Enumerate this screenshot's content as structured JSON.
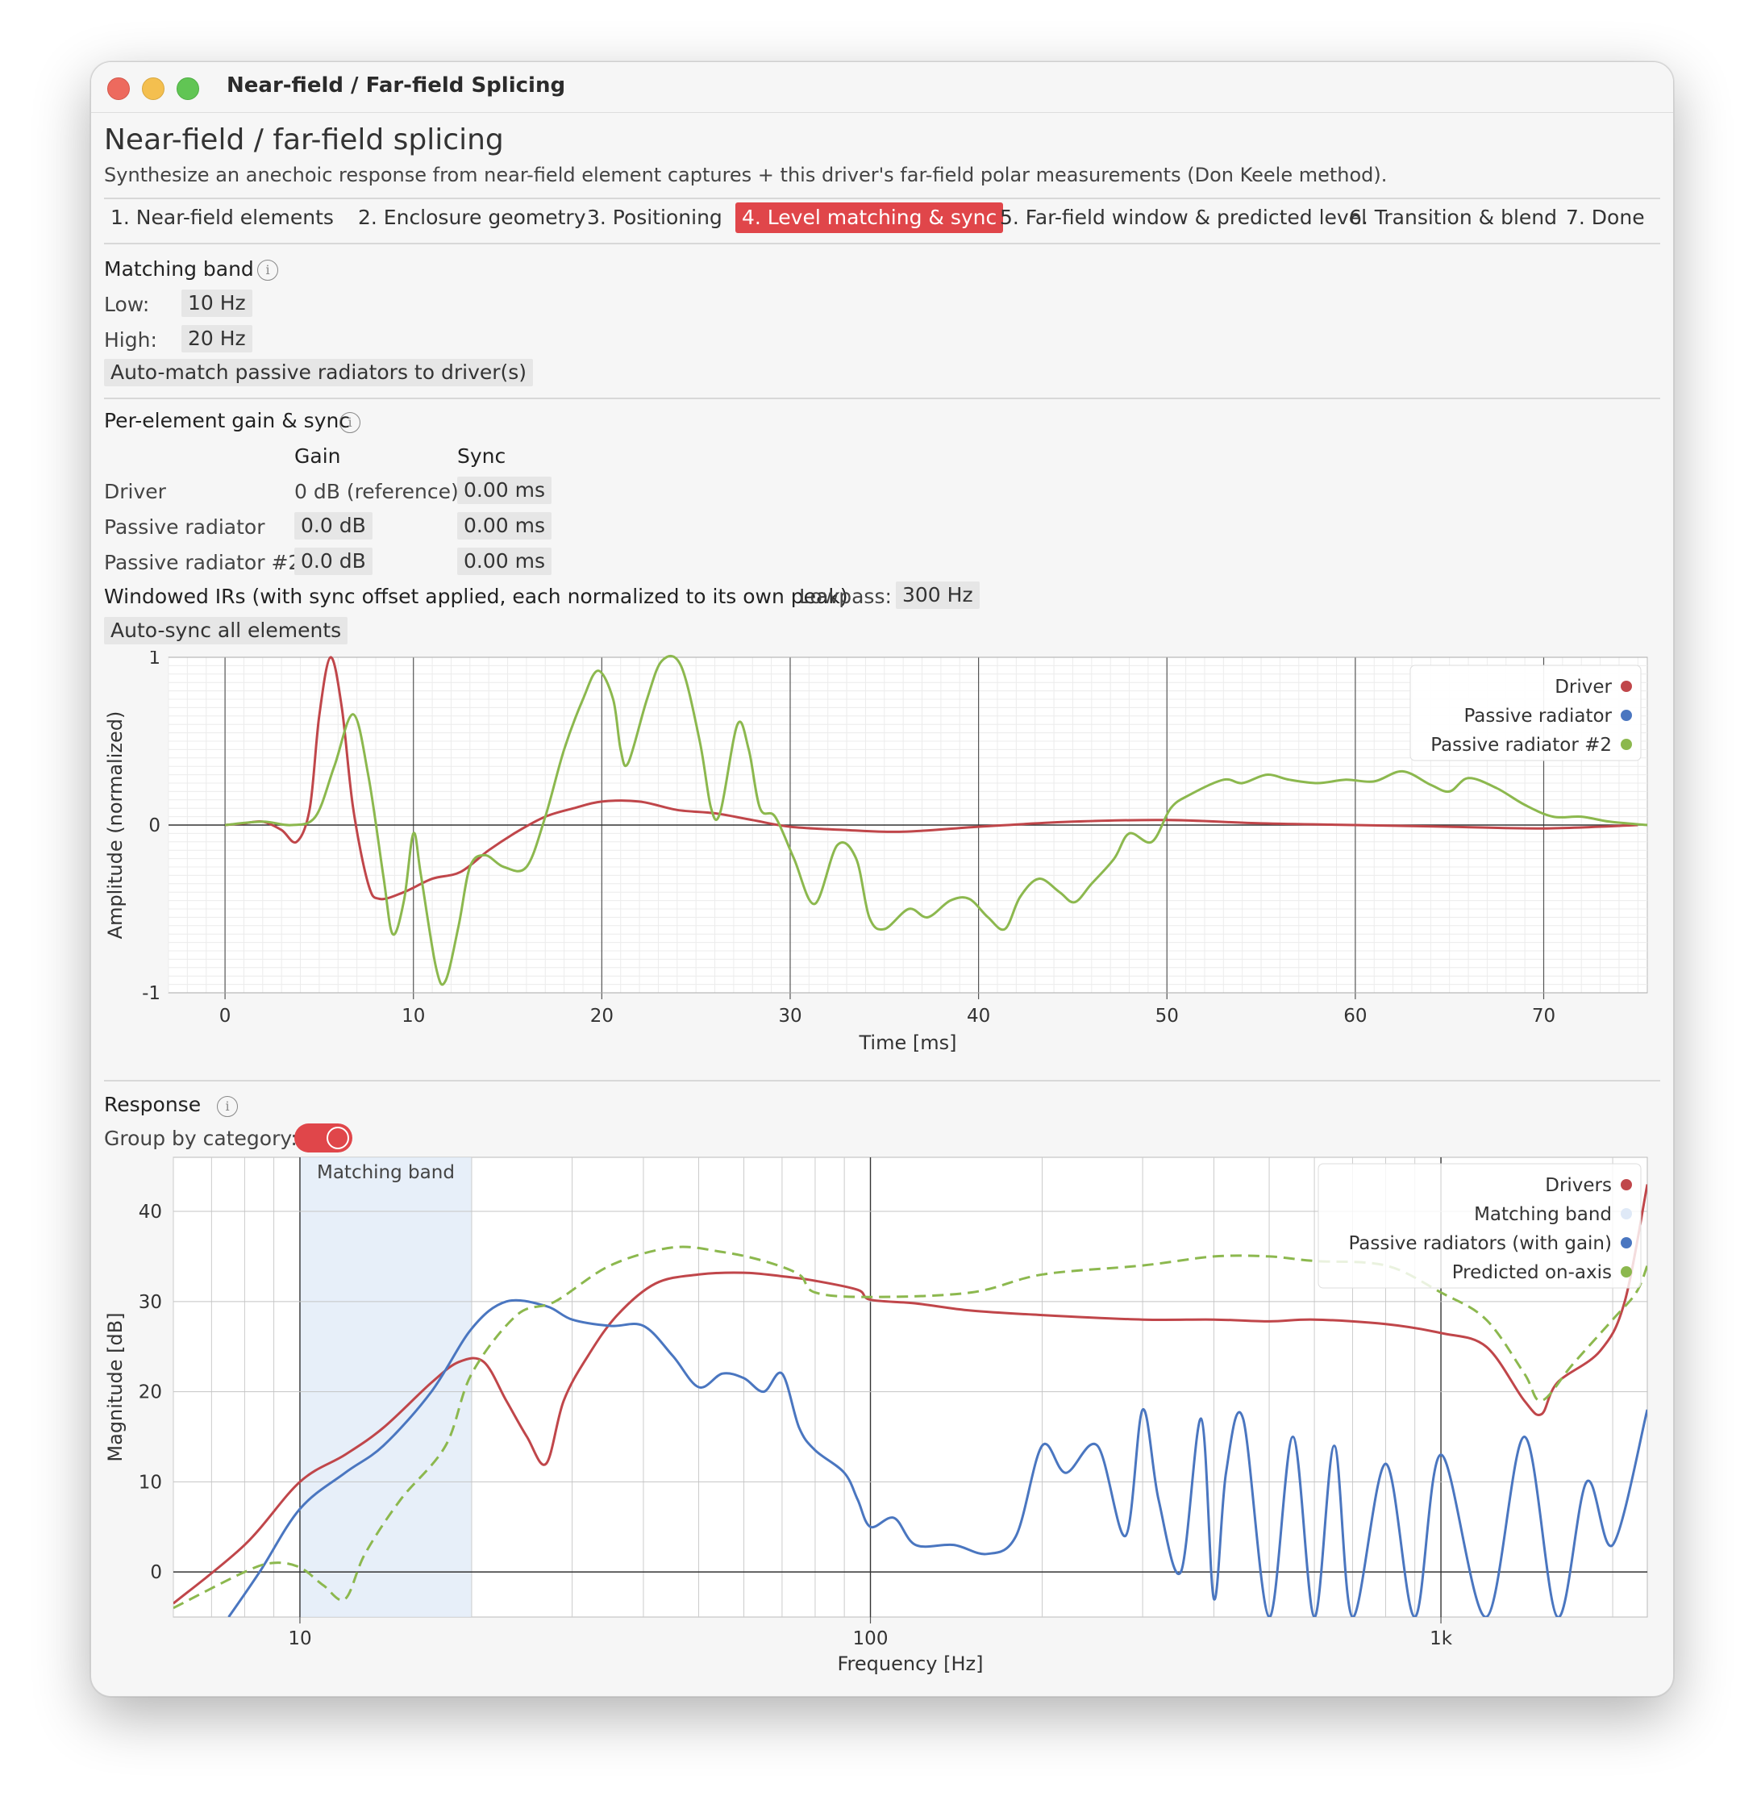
{
  "window": {
    "title": "Near-field / Far-field Splicing"
  },
  "header": {
    "title": "Near-field / far-field splicing",
    "subtitle": "Synthesize an anechoic response from near-field element captures + this driver's far-field polar measurements (Don Keele method)."
  },
  "tabs": [
    {
      "label": "1. Near-field elements",
      "active": false
    },
    {
      "label": "2. Enclosure geometry",
      "active": false
    },
    {
      "label": "3. Positioning",
      "active": false
    },
    {
      "label": "4. Level matching & sync",
      "active": true
    },
    {
      "label": "5. Far-field window & predicted level",
      "active": false
    },
    {
      "label": "6. Transition & blend",
      "active": false
    },
    {
      "label": "7. Done",
      "active": false
    }
  ],
  "matching_band": {
    "heading": "Matching band",
    "low_label": "Low:",
    "low_value": "10 Hz",
    "high_label": "High:",
    "high_value": "20 Hz",
    "auto_match_button": "Auto-match passive radiators to driver(s)"
  },
  "per_element": {
    "heading": "Per-element gain & sync",
    "col_gain": "Gain",
    "col_sync": "Sync",
    "rows": [
      {
        "name": "Driver",
        "gain": "0 dB (reference)",
        "sync": "0.00 ms"
      },
      {
        "name": "Passive radiator",
        "gain": "0.0 dB",
        "sync": "0.00 ms"
      },
      {
        "name": "Passive radiator #2",
        "gain": "0.0 dB",
        "sync": "0.00 ms"
      }
    ],
    "windowed_label": "Windowed IRs (with sync offset applied, each normalized to its own peak)",
    "lowpass_label": "Lowpass:",
    "lowpass_value": "300 Hz",
    "auto_sync_button": "Auto-sync all elements"
  },
  "response": {
    "heading": "Response",
    "group_label": "Group by category:",
    "group_enabled": true
  },
  "colors": {
    "driver": "#c0464a",
    "passive": "#4a76c0",
    "passive2": "#8cb84e",
    "band": "#dfe9f7",
    "accent": "#e0464a"
  },
  "chart_data": [
    {
      "type": "line",
      "xlabel": "Time [ms]",
      "ylabel": "Amplitude (normalized)",
      "xlim": [
        -3,
        75.5
      ],
      "ylim": [
        -1,
        1
      ],
      "xticks": [
        0,
        10,
        20,
        30,
        40,
        50,
        60,
        70
      ],
      "yticks": [
        -1,
        0,
        1
      ],
      "legend_position": "top-right",
      "series": [
        {
          "name": "Driver",
          "points": [
            [
              0,
              0
            ],
            [
              1,
              0.01
            ],
            [
              2,
              0.02
            ],
            [
              3,
              -0.03
            ],
            [
              3.8,
              -0.1
            ],
            [
              4.5,
              0.1
            ],
            [
              5,
              0.65
            ],
            [
              5.6,
              1.0
            ],
            [
              6.2,
              0.7
            ],
            [
              6.8,
              0.1
            ],
            [
              7.6,
              -0.35
            ],
            [
              8.2,
              -0.44
            ],
            [
              9.5,
              -0.4
            ],
            [
              11,
              -0.32
            ],
            [
              12.5,
              -0.28
            ],
            [
              14,
              -0.15
            ],
            [
              15.5,
              -0.04
            ],
            [
              17,
              0.05
            ],
            [
              18.5,
              0.1
            ],
            [
              20,
              0.14
            ],
            [
              22,
              0.14
            ],
            [
              24,
              0.09
            ],
            [
              26,
              0.07
            ],
            [
              28,
              0.03
            ],
            [
              30,
              -0.01
            ],
            [
              33,
              -0.03
            ],
            [
              36,
              -0.04
            ],
            [
              40,
              -0.01
            ],
            [
              45,
              0.02
            ],
            [
              50,
              0.03
            ],
            [
              55,
              0.01
            ],
            [
              60,
              0
            ],
            [
              65,
              -0.01
            ],
            [
              70,
              -0.02
            ],
            [
              75,
              0
            ]
          ]
        },
        {
          "name": "Passive radiator",
          "points": []
        },
        {
          "name": "Passive radiator #2",
          "points": [
            [
              0,
              0
            ],
            [
              2,
              0.02
            ],
            [
              3.5,
              0
            ],
            [
              4.8,
              0.05
            ],
            [
              5.8,
              0.35
            ],
            [
              6.8,
              0.66
            ],
            [
              7.6,
              0.3
            ],
            [
              8.4,
              -0.3
            ],
            [
              8.9,
              -0.65
            ],
            [
              9.5,
              -0.45
            ],
            [
              10,
              -0.05
            ],
            [
              10.4,
              -0.3
            ],
            [
              11.2,
              -0.85
            ],
            [
              11.7,
              -0.93
            ],
            [
              12.4,
              -0.6
            ],
            [
              13,
              -0.25
            ],
            [
              13.8,
              -0.18
            ],
            [
              14.8,
              -0.25
            ],
            [
              16,
              -0.25
            ],
            [
              17,
              0.05
            ],
            [
              18,
              0.45
            ],
            [
              19,
              0.75
            ],
            [
              19.8,
              0.92
            ],
            [
              20.6,
              0.75
            ],
            [
              21,
              0.45
            ],
            [
              21.4,
              0.37
            ],
            [
              22.4,
              0.75
            ],
            [
              23.2,
              0.98
            ],
            [
              24.2,
              0.95
            ],
            [
              25.2,
              0.5
            ],
            [
              25.8,
              0.1
            ],
            [
              26.3,
              0.08
            ],
            [
              27.2,
              0.6
            ],
            [
              27.8,
              0.45
            ],
            [
              28.4,
              0.1
            ],
            [
              29.2,
              0.05
            ],
            [
              30.2,
              -0.2
            ],
            [
              31.3,
              -0.47
            ],
            [
              32.5,
              -0.12
            ],
            [
              33.5,
              -0.2
            ],
            [
              34.2,
              -0.55
            ],
            [
              35,
              -0.62
            ],
            [
              36.3,
              -0.5
            ],
            [
              37.3,
              -0.55
            ],
            [
              38.5,
              -0.45
            ],
            [
              39.5,
              -0.44
            ],
            [
              40.5,
              -0.55
            ],
            [
              41.4,
              -0.62
            ],
            [
              42.2,
              -0.43
            ],
            [
              43.2,
              -0.32
            ],
            [
              44.3,
              -0.4
            ],
            [
              45.1,
              -0.46
            ],
            [
              46,
              -0.35
            ],
            [
              47.2,
              -0.2
            ],
            [
              48,
              -0.05
            ],
            [
              49.2,
              -0.1
            ],
            [
              50.2,
              0.1
            ],
            [
              51.2,
              0.18
            ],
            [
              53,
              0.27
            ],
            [
              54,
              0.25
            ],
            [
              55.3,
              0.3
            ],
            [
              56.5,
              0.27
            ],
            [
              58,
              0.25
            ],
            [
              59.5,
              0.27
            ],
            [
              61,
              0.26
            ],
            [
              62.5,
              0.32
            ],
            [
              64,
              0.24
            ],
            [
              65,
              0.2
            ],
            [
              66,
              0.28
            ],
            [
              67.5,
              0.22
            ],
            [
              69,
              0.12
            ],
            [
              70.5,
              0.05
            ],
            [
              72,
              0.05
            ],
            [
              73.5,
              0.02
            ],
            [
              75.5,
              0
            ]
          ]
        }
      ]
    },
    {
      "type": "line",
      "xlabel": "Frequency [Hz]",
      "ylabel": "Magnitude [dB]",
      "xscale": "log",
      "xlim": [
        6,
        2300
      ],
      "ylim": [
        -5,
        46
      ],
      "xticks": [
        10,
        100,
        1000
      ],
      "xtick_labels": [
        "10",
        "100",
        "1k"
      ],
      "yticks": [
        0,
        10,
        20,
        30,
        40
      ],
      "legend_position": "top-right",
      "annotations": [
        {
          "text": "Matching band",
          "x_range": [
            10,
            20
          ]
        }
      ],
      "series": [
        {
          "name": "Drivers",
          "points": [
            [
              6,
              -3.5
            ],
            [
              8,
              3
            ],
            [
              10,
              10
            ],
            [
              12,
              13
            ],
            [
              14,
              16
            ],
            [
              17,
              21
            ],
            [
              19,
              23.3
            ],
            [
              21,
              23.3
            ],
            [
              23,
              19
            ],
            [
              25,
              15
            ],
            [
              27,
              12
            ],
            [
              29,
              19
            ],
            [
              32,
              24
            ],
            [
              36,
              28.5
            ],
            [
              42,
              32
            ],
            [
              50,
              33
            ],
            [
              60,
              33.2
            ],
            [
              70,
              32.8
            ],
            [
              80,
              32.3
            ],
            [
              95,
              31.3
            ],
            [
              100,
              30.2
            ],
            [
              120,
              29.8
            ],
            [
              150,
              29
            ],
            [
              200,
              28.5
            ],
            [
              300,
              28
            ],
            [
              400,
              28
            ],
            [
              500,
              27.8
            ],
            [
              600,
              28
            ],
            [
              800,
              27.5
            ],
            [
              1000,
              26.5
            ],
            [
              1200,
              25
            ],
            [
              1400,
              19
            ],
            [
              1500,
              17.5
            ],
            [
              1600,
              21
            ],
            [
              1900,
              24.5
            ],
            [
              2100,
              30
            ],
            [
              2300,
              43
            ]
          ]
        },
        {
          "name": "Passive radiators (with gain)",
          "points": [
            [
              7.5,
              -5
            ],
            [
              8.5,
              0
            ],
            [
              10,
              7
            ],
            [
              12,
              11
            ],
            [
              14,
              14
            ],
            [
              17,
              20
            ],
            [
              20,
              27
            ],
            [
              23,
              30
            ],
            [
              27,
              29.5
            ],
            [
              30,
              28
            ],
            [
              35,
              27.3
            ],
            [
              40,
              27.3
            ],
            [
              45,
              24
            ],
            [
              50,
              20.5
            ],
            [
              55,
              22
            ],
            [
              60,
              21.5
            ],
            [
              65,
              20
            ],
            [
              70,
              22
            ],
            [
              75,
              16
            ],
            [
              80,
              13.5
            ],
            [
              90,
              11
            ],
            [
              95,
              8
            ],
            [
              100,
              5
            ],
            [
              110,
              6
            ],
            [
              120,
              3
            ],
            [
              140,
              3
            ],
            [
              160,
              2
            ],
            [
              180,
              4
            ],
            [
              200,
              14
            ],
            [
              220,
              11
            ],
            [
              250,
              14
            ],
            [
              280,
              4
            ],
            [
              300,
              18
            ],
            [
              320,
              8
            ],
            [
              350,
              0
            ],
            [
              380,
              17
            ],
            [
              400,
              -3
            ],
            [
              420,
              11
            ],
            [
              450,
              17
            ],
            [
              500,
              -5
            ],
            [
              550,
              15
            ],
            [
              600,
              -5
            ],
            [
              650,
              14
            ],
            [
              700,
              -5
            ],
            [
              800,
              12
            ],
            [
              900,
              -5
            ],
            [
              1000,
              13
            ],
            [
              1200,
              -5
            ],
            [
              1400,
              15
            ],
            [
              1600,
              -5
            ],
            [
              1800,
              10
            ],
            [
              2000,
              3
            ],
            [
              2300,
              18
            ]
          ]
        },
        {
          "name": "Predicted on-axis",
          "points": [
            [
              6,
              -4
            ],
            [
              8,
              0
            ],
            [
              9,
              1
            ],
            [
              10,
              0.5
            ],
            [
              11,
              -1.5
            ],
            [
              12,
              -3
            ],
            [
              13,
              2
            ],
            [
              15,
              8
            ],
            [
              18,
              14
            ],
            [
              20,
              22
            ],
            [
              24,
              28.5
            ],
            [
              28,
              30
            ],
            [
              35,
              34
            ],
            [
              45,
              36
            ],
            [
              55,
              35.5
            ],
            [
              65,
              34.5
            ],
            [
              75,
              33
            ],
            [
              80,
              31
            ],
            [
              100,
              30.5
            ],
            [
              150,
              31
            ],
            [
              200,
              33
            ],
            [
              300,
              34
            ],
            [
              400,
              35
            ],
            [
              500,
              35
            ],
            [
              600,
              34.5
            ],
            [
              800,
              34
            ],
            [
              1000,
              31
            ],
            [
              1200,
              28
            ],
            [
              1400,
              22
            ],
            [
              1500,
              19
            ],
            [
              1700,
              23
            ],
            [
              2000,
              28
            ],
            [
              2200,
              31
            ],
            [
              2300,
              34
            ]
          ]
        }
      ]
    }
  ]
}
